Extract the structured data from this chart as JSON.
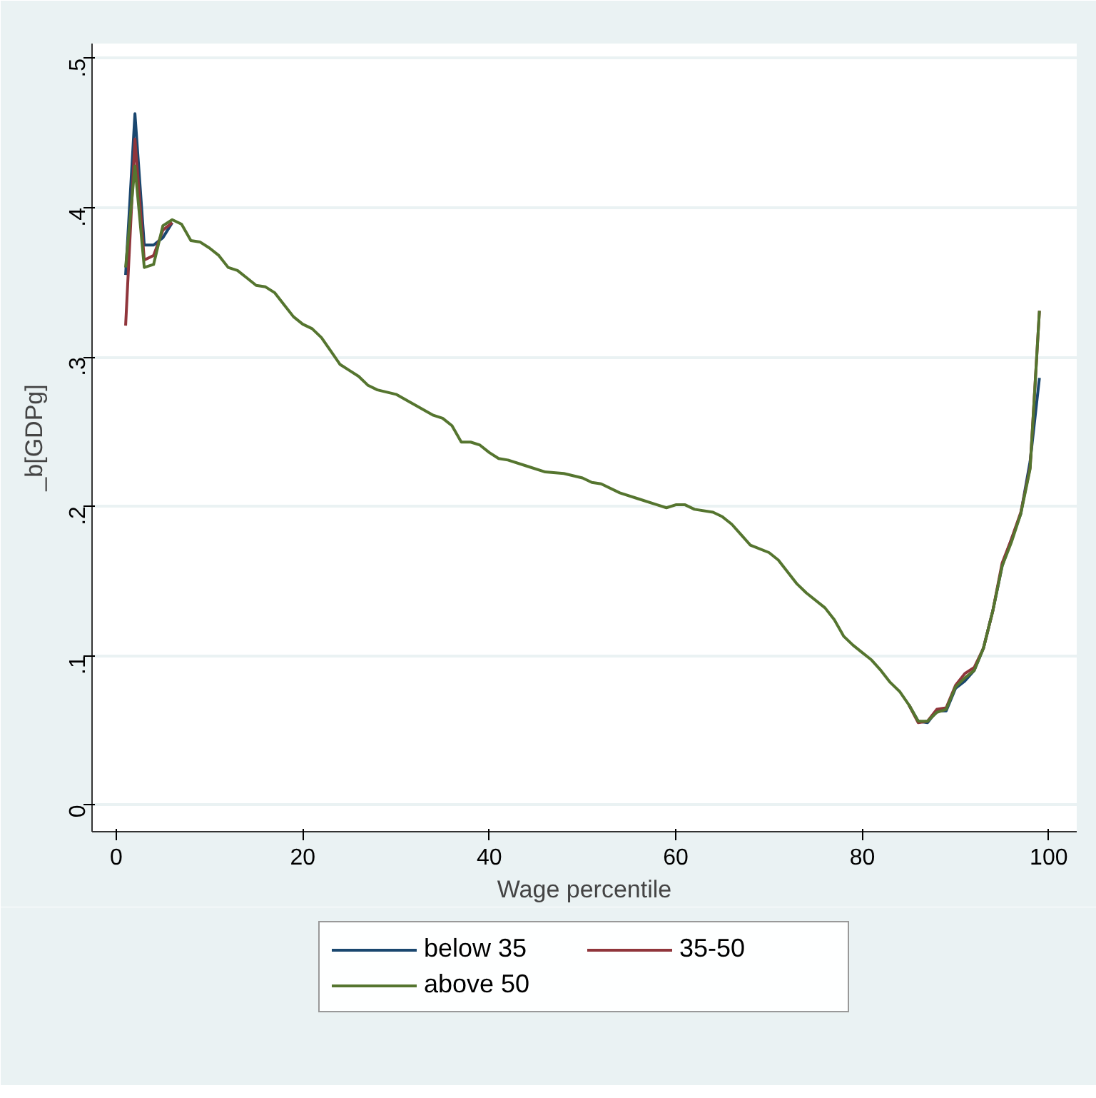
{
  "chart_data": {
    "type": "line",
    "xlabel": "Wage percentile",
    "ylabel": "_b[GDPg]",
    "x": [
      1,
      2,
      3,
      4,
      5,
      6,
      7,
      8,
      9,
      10,
      11,
      12,
      13,
      14,
      15,
      16,
      17,
      18,
      19,
      20,
      21,
      22,
      23,
      24,
      25,
      26,
      27,
      28,
      30,
      32,
      34,
      35,
      36,
      37,
      38,
      39,
      40,
      41,
      42,
      44,
      46,
      48,
      50,
      51,
      52,
      54,
      56,
      58,
      59,
      60,
      61,
      62,
      64,
      65,
      66,
      67,
      68,
      70,
      71,
      72,
      73,
      74,
      76,
      77,
      78,
      79,
      80,
      81,
      82,
      83,
      84,
      85,
      86,
      87,
      88,
      89,
      90,
      91,
      92,
      93,
      94,
      95,
      96,
      97,
      98,
      99
    ],
    "series": [
      {
        "name": "below 35",
        "color": "#1a476f",
        "values": [
          0.355,
          0.463,
          0.375,
          0.375,
          0.38,
          0.39,
          null,
          null,
          null,
          null,
          null,
          null,
          null,
          null,
          null,
          null,
          null,
          null,
          null,
          null,
          null,
          null,
          null,
          null,
          null,
          null,
          null,
          null,
          null,
          null,
          null,
          null,
          null,
          null,
          null,
          null,
          null,
          null,
          null,
          null,
          null,
          null,
          null,
          null,
          null,
          null,
          null,
          null,
          null,
          null,
          null,
          null,
          null,
          null,
          null,
          null,
          null,
          null,
          null,
          null,
          null,
          null,
          null,
          null,
          null,
          null,
          null,
          null,
          null,
          null,
          null,
          0.067,
          0.056,
          0.055,
          0.063,
          0.063,
          0.078,
          0.083,
          0.09,
          0.105,
          0.13,
          0.16,
          0.178,
          0.195,
          0.23,
          0.286
        ]
      },
      {
        "name": "35-50",
        "color": "#90353b",
        "values": [
          0.321,
          0.446,
          0.365,
          0.368,
          0.385,
          0.39,
          null,
          null,
          null,
          null,
          null,
          null,
          null,
          null,
          null,
          null,
          null,
          null,
          null,
          null,
          null,
          null,
          null,
          null,
          null,
          null,
          null,
          null,
          null,
          null,
          null,
          null,
          null,
          null,
          null,
          null,
          null,
          null,
          null,
          null,
          null,
          null,
          null,
          null,
          null,
          null,
          null,
          null,
          null,
          null,
          null,
          null,
          null,
          null,
          null,
          null,
          null,
          null,
          null,
          null,
          null,
          null,
          null,
          null,
          null,
          null,
          null,
          null,
          null,
          null,
          null,
          0.067,
          0.055,
          0.056,
          0.064,
          0.065,
          0.08,
          0.088,
          0.092,
          0.105,
          0.13,
          0.162,
          0.178,
          0.196,
          0.226,
          0.331
        ]
      },
      {
        "name": "above 50",
        "color": "#55752f",
        "values": [
          0.36,
          0.428,
          0.36,
          0.362,
          0.388,
          0.392,
          0.389,
          0.378,
          0.377,
          0.373,
          0.368,
          0.36,
          0.358,
          0.353,
          0.348,
          0.347,
          0.343,
          0.335,
          0.327,
          0.322,
          0.319,
          0.313,
          0.304,
          0.295,
          0.291,
          0.287,
          0.281,
          0.278,
          0.275,
          0.268,
          0.261,
          0.259,
          0.254,
          0.243,
          0.243,
          0.241,
          0.236,
          0.232,
          0.231,
          0.227,
          0.223,
          0.222,
          0.219,
          0.216,
          0.215,
          0.209,
          0.205,
          0.201,
          0.199,
          0.201,
          0.201,
          0.198,
          0.196,
          0.193,
          0.188,
          0.181,
          0.174,
          0.169,
          0.164,
          0.156,
          0.148,
          0.142,
          0.132,
          0.124,
          0.113,
          0.107,
          0.102,
          0.097,
          0.09,
          0.082,
          0.076,
          0.067,
          0.056,
          0.056,
          0.062,
          0.064,
          0.079,
          0.085,
          0.09,
          0.105,
          0.13,
          0.16,
          0.176,
          0.195,
          0.225,
          0.331
        ]
      }
    ],
    "xlim": [
      -2.6,
      103
    ],
    "ylim": [
      -0.018,
      0.51
    ],
    "xticks": [
      0,
      20,
      40,
      60,
      80,
      100
    ],
    "yticks": [
      0,
      {
        "value": 0.1,
        "label": ".1"
      },
      {
        "value": 0.2,
        "label": ".2"
      },
      {
        "value": 0.3,
        "label": ".3"
      },
      {
        "value": 0.4,
        "label": ".4"
      },
      {
        "value": 0.5,
        "label": ".5"
      }
    ],
    "grid": "y",
    "legend": "bottom",
    "line_style": "solid"
  }
}
